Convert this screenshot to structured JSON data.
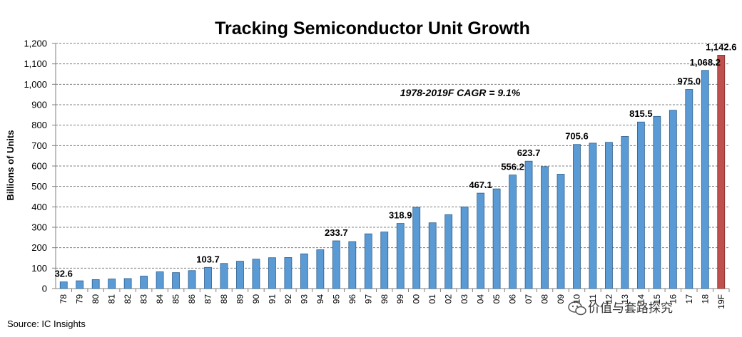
{
  "chart_data": {
    "type": "bar",
    "title": "Tracking Semiconductor Unit Growth",
    "xlabel": "",
    "ylabel": "Billions of Units",
    "ylim": [
      0,
      1200
    ],
    "yticks": [
      "0",
      "100",
      "200",
      "300",
      "400",
      "500",
      "600",
      "700",
      "800",
      "900",
      "1,000",
      "1,100",
      "1,200"
    ],
    "grid": true,
    "categories": [
      "78",
      "79",
      "80",
      "81",
      "82",
      "83",
      "84",
      "85",
      "86",
      "87",
      "88",
      "89",
      "90",
      "91",
      "92",
      "93",
      "94",
      "95",
      "96",
      "97",
      "98",
      "99",
      "00",
      "01",
      "02",
      "03",
      "04",
      "05",
      "06",
      "07",
      "08",
      "09",
      "10",
      "11",
      "12",
      "13",
      "14",
      "15",
      "16",
      "17",
      "18",
      "19F"
    ],
    "values": [
      32.6,
      38,
      44,
      47,
      49,
      61,
      82,
      78,
      88,
      103.7,
      123,
      134,
      144,
      151,
      152,
      170,
      190,
      233.7,
      230,
      268,
      277,
      318.9,
      398,
      322,
      362,
      400,
      467.1,
      488,
      556.2,
      623.7,
      597,
      560,
      705.6,
      712,
      716,
      745,
      815.5,
      843,
      873,
      975.0,
      1068.2,
      1142.6
    ],
    "data_labels": [
      {
        "index": 0,
        "text": "32.6"
      },
      {
        "index": 9,
        "text": "103.7"
      },
      {
        "index": 17,
        "text": "233.7"
      },
      {
        "index": 21,
        "text": "318.9"
      },
      {
        "index": 26,
        "text": "467.1"
      },
      {
        "index": 28,
        "text": "556.2"
      },
      {
        "index": 29,
        "text": "623.7"
      },
      {
        "index": 32,
        "text": "705.6"
      },
      {
        "index": 36,
        "text": "815.5"
      },
      {
        "index": 39,
        "text": "975.0"
      },
      {
        "index": 40,
        "text": "1,068.2"
      },
      {
        "index": 41,
        "text": "1,142.6"
      }
    ],
    "annotation": "1978-2019F CAGR = 9.1%",
    "source": "Source:  IC Insights",
    "colors": {
      "bar": "#5b9bd5",
      "bar_edge": "#2e5f8c",
      "forecast_bar": "#c0504d",
      "forecast_edge": "#7f2a28"
    }
  },
  "watermark": {
    "text": "价值与套路探究",
    "icon": "wechat-icon"
  }
}
